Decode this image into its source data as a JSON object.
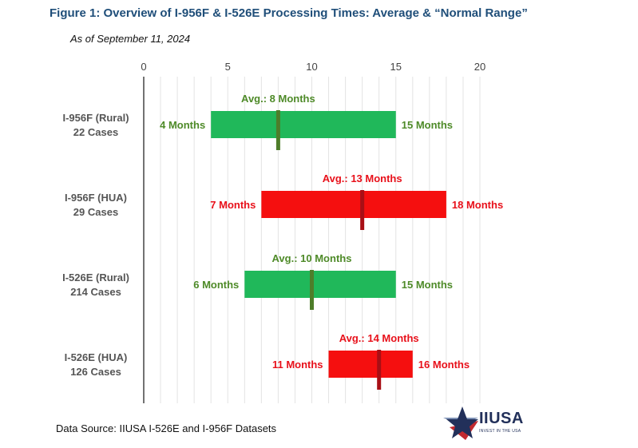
{
  "title": "Figure 1: Overview of I-956F & I-526E Processing Times: Average & “Normal Range”",
  "subtitle": "As of September 11, 2024",
  "source": "Data Source: IIUSA I-526E and I-956F Datasets",
  "logo": {
    "name": "IIUSA",
    "tagline": "INVEST IN THE USA"
  },
  "colors": {
    "green": "#20b85a",
    "green_avg": "#4e7d2a",
    "green_text": "#4e8a28",
    "red": "#f50f0f",
    "red_avg": "#a80f15",
    "red_text": "#e8101a",
    "category_text": "#555555",
    "grid": "#e3e3e3"
  },
  "chart_data": {
    "type": "bar",
    "orientation": "horizontal-range",
    "xlim": [
      0,
      20
    ],
    "xticks": [
      0,
      5,
      10,
      15,
      20
    ],
    "grid": true,
    "categories": [
      {
        "line1": "I-956F (Rural)",
        "line2": "22 Cases",
        "min": 4,
        "max": 15,
        "avg": 8,
        "color": "green",
        "min_label": "4 Months",
        "max_label": "15 Months",
        "avg_label": "Avg.: 8 Months"
      },
      {
        "line1": "I-956F (HUA)",
        "line2": "29 Cases",
        "min": 7,
        "max": 18,
        "avg": 13,
        "color": "red",
        "min_label": "7 Months",
        "max_label": "18 Months",
        "avg_label": "Avg.: 13 Months"
      },
      {
        "line1": "I-526E (Rural)",
        "line2": "214 Cases",
        "min": 6,
        "max": 15,
        "avg": 10,
        "color": "green",
        "min_label": "6 Months",
        "max_label": "15 Months",
        "avg_label": "Avg.: 10 Months"
      },
      {
        "line1": "I-526E (HUA)",
        "line2": "126 Cases",
        "min": 11,
        "max": 16,
        "avg": 14,
        "color": "red",
        "min_label": "11 Months",
        "max_label": "16 Months",
        "avg_label": "Avg.: 14 Months"
      }
    ]
  }
}
